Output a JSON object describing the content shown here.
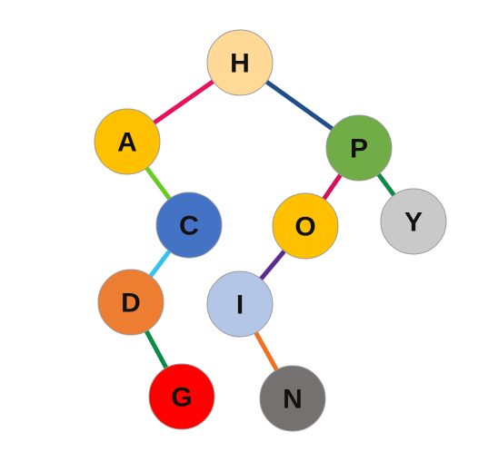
{
  "tree": {
    "nodes": [
      {
        "id": "H",
        "label": "H",
        "color": "#FFD995"
      },
      {
        "id": "A",
        "label": "A",
        "color": "#FFC000"
      },
      {
        "id": "P",
        "label": "P",
        "color": "#70AD47"
      },
      {
        "id": "C",
        "label": "C",
        "color": "#4472C4"
      },
      {
        "id": "O",
        "label": "O",
        "color": "#FFC000"
      },
      {
        "id": "Y",
        "label": "Y",
        "color": "#C9C9C9"
      },
      {
        "id": "D",
        "label": "D",
        "color": "#ED7D31"
      },
      {
        "id": "I",
        "label": "I",
        "color": "#B4C6E7"
      },
      {
        "id": "G",
        "label": "G",
        "color": "#FF0000"
      },
      {
        "id": "N",
        "label": "N",
        "color": "#767171"
      }
    ],
    "edges": [
      {
        "from": "H",
        "to": "A",
        "color": "#E8125C"
      },
      {
        "from": "H",
        "to": "P",
        "color": "#1F4E89"
      },
      {
        "from": "A",
        "to": "C",
        "color": "#66CC22"
      },
      {
        "from": "P",
        "to": "O",
        "color": "#D6125C"
      },
      {
        "from": "P",
        "to": "Y",
        "color": "#0B8A48"
      },
      {
        "from": "C",
        "to": "D",
        "color": "#33C3F0"
      },
      {
        "from": "O",
        "to": "I",
        "color": "#5B2D8E"
      },
      {
        "from": "D",
        "to": "G",
        "color": "#0B8A48"
      },
      {
        "from": "I",
        "to": "N",
        "color": "#F07020"
      }
    ]
  }
}
